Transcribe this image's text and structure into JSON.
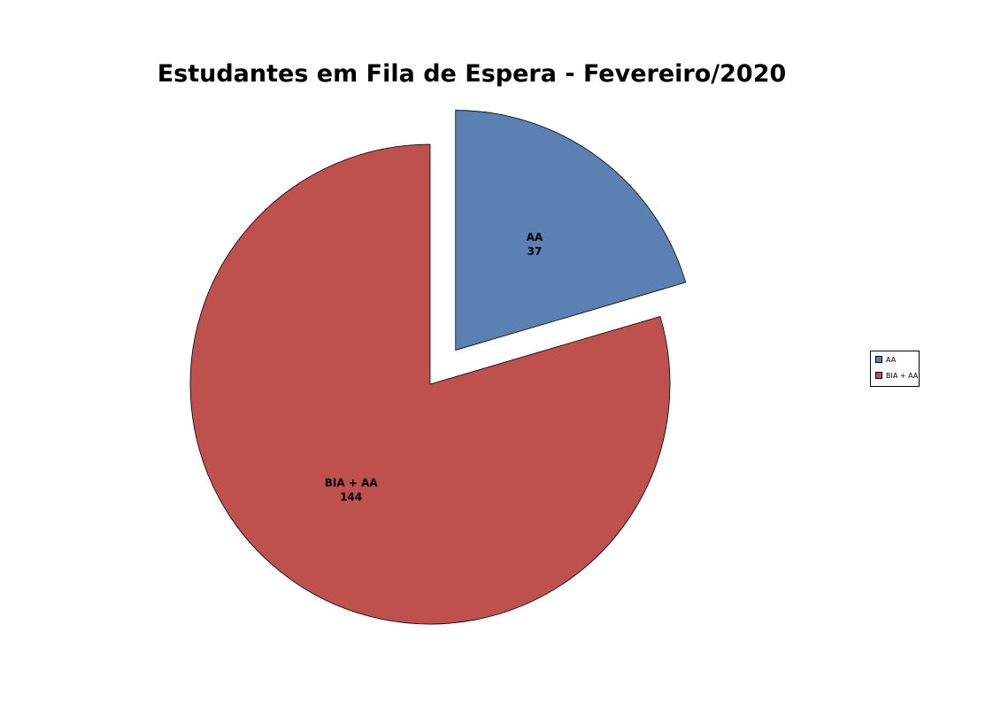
{
  "chart_data": {
    "type": "pie",
    "title": "Estudantes em Fila de Espera - Fevereiro/2020",
    "slices": [
      {
        "label": "AA",
        "value": 37,
        "color": "#5B80B2",
        "exploded": true
      },
      {
        "label": "BIA + AA",
        "value": 144,
        "color": "#BE504E",
        "exploded": false
      }
    ],
    "start_angle": "top",
    "direction": "clockwise",
    "legend": {
      "placement": "right",
      "entries": [
        "AA",
        "BIA + AA"
      ]
    }
  }
}
